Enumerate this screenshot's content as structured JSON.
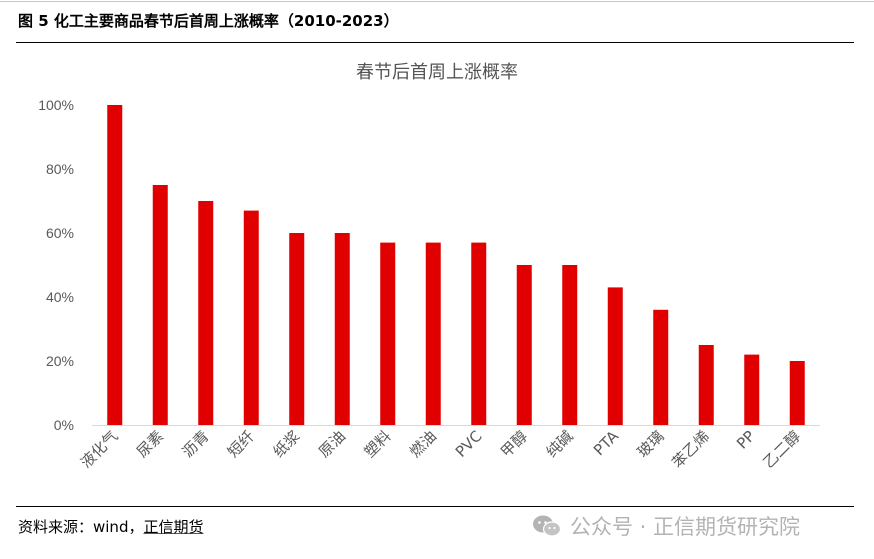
{
  "header": {
    "figure_title": "图 5  化工主要商品春节后首周上涨概率（2010-2023）"
  },
  "chart_data": {
    "type": "bar",
    "title": "春节后首周上涨概率",
    "xlabel": "",
    "ylabel": "",
    "ylim": [
      0,
      100
    ],
    "yticks": [
      "0%",
      "20%",
      "40%",
      "60%",
      "80%",
      "100%"
    ],
    "categories": [
      "液化气",
      "尿素",
      "沥青",
      "短纤",
      "纸浆",
      "原油",
      "塑料",
      "燃油",
      "PVC",
      "甲醇",
      "纯碱",
      "PTA",
      "玻璃",
      "苯乙烯",
      "PP",
      "乙二醇"
    ],
    "values": [
      100,
      75,
      70,
      67,
      60,
      60,
      57,
      57,
      57,
      50,
      50,
      43,
      36,
      25,
      22,
      20
    ],
    "bar_color": "#e00000",
    "grid": false
  },
  "footer": {
    "source_prefix": "资料来源：wind，",
    "source_link": "正信期货"
  },
  "watermark": {
    "text": "公众号 · 正信期货研究院",
    "icon": "wechat-icon"
  }
}
